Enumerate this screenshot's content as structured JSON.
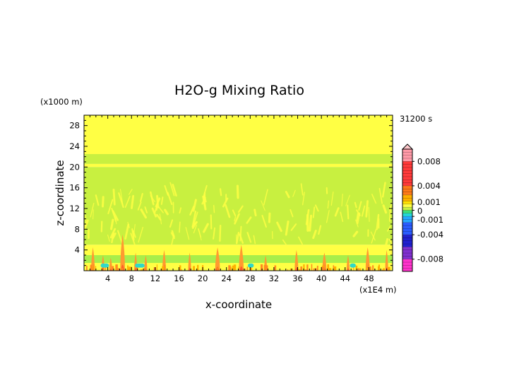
{
  "chart_data": {
    "type": "heatmap",
    "title": "H2O-g Mixing Ratio",
    "xlabel": "x-coordinate",
    "ylabel": "z-coordinate",
    "x_unit": "(x1E4 m)",
    "y_unit": "(x1000 m)",
    "time_label": "31200 s",
    "xlim": [
      0,
      52
    ],
    "ylim": [
      0,
      30
    ],
    "xticks": [
      4,
      8,
      12,
      16,
      20,
      24,
      28,
      32,
      36,
      40,
      44,
      48
    ],
    "yticks": [
      4,
      8,
      12,
      16,
      20,
      24,
      28
    ],
    "layers": [
      {
        "z_range": [
          22.5,
          30
        ],
        "value": 0.0012,
        "color": "#ffff44"
      },
      {
        "z_range": [
          20.6,
          22.5
        ],
        "value": 0.0008,
        "color": "#c8f040"
      },
      {
        "z_range": [
          20.0,
          20.6
        ],
        "value": 0.0012,
        "color": "#ffff44"
      },
      {
        "z_range": [
          5.0,
          20.0
        ],
        "value": 0.0008,
        "color": "#c8f040"
      },
      {
        "z_range": [
          3.0,
          5.0
        ],
        "value": 0.0012,
        "color": "#ffff44"
      },
      {
        "z_range": [
          1.5,
          3.0
        ],
        "value": 0.0006,
        "color": "#a8ee4a"
      },
      {
        "z_range": [
          0,
          1.5
        ],
        "value": 0.0012,
        "color": "#ffff44"
      }
    ],
    "plumes": [
      {
        "x": 1.5,
        "top": 4.5,
        "w": 0.6
      },
      {
        "x": 3.2,
        "top": 3.0,
        "w": 0.5
      },
      {
        "x": 4.5,
        "top": 2.5,
        "w": 0.5
      },
      {
        "x": 6.5,
        "top": 7.0,
        "w": 0.8
      },
      {
        "x": 8.7,
        "top": 3.5,
        "w": 0.5
      },
      {
        "x": 10.4,
        "top": 3.0,
        "w": 0.5
      },
      {
        "x": 13.5,
        "top": 4.0,
        "w": 0.6
      },
      {
        "x": 17.8,
        "top": 3.5,
        "w": 0.5
      },
      {
        "x": 22.5,
        "top": 4.5,
        "w": 0.8
      },
      {
        "x": 26.5,
        "top": 5.0,
        "w": 0.8
      },
      {
        "x": 30.6,
        "top": 3.0,
        "w": 0.5
      },
      {
        "x": 35.8,
        "top": 4.0,
        "w": 0.6
      },
      {
        "x": 40.5,
        "top": 3.5,
        "w": 0.7
      },
      {
        "x": 44.5,
        "top": 3.0,
        "w": 0.5
      },
      {
        "x": 47.8,
        "top": 4.5,
        "w": 0.7
      },
      {
        "x": 51.0,
        "top": 4.0,
        "w": 0.5
      }
    ],
    "dry_patches": [
      {
        "x": [
          2.8,
          4.2
        ],
        "z": [
          0.6,
          1.4
        ]
      },
      {
        "x": [
          8.6,
          10.2
        ],
        "z": [
          0.6,
          1.4
        ]
      },
      {
        "x": [
          27.6,
          28.6
        ],
        "z": [
          0.6,
          1.4
        ]
      },
      {
        "x": [
          44.8,
          45.8
        ],
        "z": [
          0.6,
          1.4
        ]
      }
    ],
    "colorbar": {
      "labels": [
        "0.008",
        "0.004",
        "0.001",
        "0",
        "-0.001",
        "-0.004",
        "-0.008"
      ],
      "label_values": [
        0.008,
        0.004,
        0.001,
        0,
        -0.001,
        -0.004,
        -0.008
      ],
      "range": [
        -0.01,
        0.01
      ],
      "bands": [
        {
          "from": 0.008,
          "to": 0.01,
          "color": "#ff9aa8"
        },
        {
          "from": 0.004,
          "to": 0.008,
          "color": "#ff3a3a"
        },
        {
          "from": 0.0025,
          "to": 0.004,
          "color": "#ff7a1a"
        },
        {
          "from": 0.0015,
          "to": 0.0025,
          "color": "#ffb000"
        },
        {
          "from": 0.001,
          "to": 0.0015,
          "color": "#ffe000"
        },
        {
          "from": 0.0005,
          "to": 0.001,
          "color": "#ffff44"
        },
        {
          "from": 0,
          "to": 0.0005,
          "color": "#c8f040"
        },
        {
          "from": -0.0005,
          "to": 0,
          "color": "#3ce07a"
        },
        {
          "from": -0.001,
          "to": -0.0005,
          "color": "#22d8d8"
        },
        {
          "from": -0.002,
          "to": -0.001,
          "color": "#24a8ff"
        },
        {
          "from": -0.004,
          "to": -0.002,
          "color": "#2a5cff"
        },
        {
          "from": -0.006,
          "to": -0.004,
          "color": "#2020d0"
        },
        {
          "from": -0.008,
          "to": -0.006,
          "color": "#8030d0"
        },
        {
          "from": -0.01,
          "to": -0.008,
          "color": "#ff33cc"
        }
      ]
    }
  }
}
